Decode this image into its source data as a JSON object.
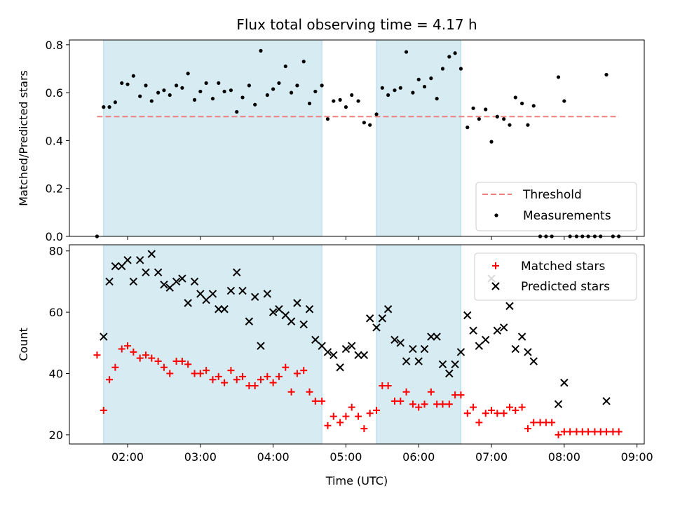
{
  "chart_data": [
    {
      "type": "scatter",
      "title": "Flux total observing time = 4.17 h",
      "ylabel": "Matched/Predicted stars",
      "ylim": [
        0,
        0.82
      ],
      "yticks": [
        0.0,
        0.2,
        0.4,
        0.6,
        0.8
      ],
      "ytick_labels": [
        "0.0",
        "0.2",
        "0.4",
        "0.6",
        "0.8"
      ],
      "xlim": [
        1.2,
        9.1
      ],
      "grid": false,
      "legend_position": "bottom-right",
      "shaded_intervals": [
        [
          1.67,
          4.67
        ],
        [
          5.42,
          6.58
        ]
      ],
      "threshold": {
        "name": "Threshold",
        "value": 0.5,
        "x_range": [
          1.58,
          8.75
        ],
        "color": "#f08080"
      },
      "series": [
        {
          "name": "Measurements",
          "marker": "dot",
          "color": "#000000",
          "x": [
            1.58,
            1.67,
            1.75,
            1.83,
            1.92,
            2.0,
            2.08,
            2.17,
            2.25,
            2.33,
            2.42,
            2.5,
            2.58,
            2.67,
            2.75,
            2.83,
            2.92,
            3.0,
            3.08,
            3.17,
            3.25,
            3.33,
            3.42,
            3.5,
            3.58,
            3.67,
            3.75,
            3.83,
            3.92,
            4.0,
            4.08,
            4.17,
            4.25,
            4.33,
            4.42,
            4.5,
            4.58,
            4.67,
            4.75,
            4.83,
            4.92,
            5.0,
            5.08,
            5.17,
            5.25,
            5.33,
            5.42,
            5.5,
            5.58,
            5.67,
            5.75,
            5.83,
            5.92,
            6.0,
            6.08,
            6.17,
            6.25,
            6.33,
            6.42,
            6.5,
            6.58,
            6.67,
            6.75,
            6.83,
            6.92,
            7.0,
            7.08,
            7.17,
            7.25,
            7.33,
            7.42,
            7.5,
            7.58,
            7.67,
            7.75,
            7.83,
            7.92,
            8.0,
            8.08,
            8.17,
            8.25,
            8.33,
            8.42,
            8.5,
            8.58,
            8.67,
            8.75
          ],
          "y": [
            0.0,
            0.54,
            0.54,
            0.56,
            0.64,
            0.635,
            0.67,
            0.585,
            0.63,
            0.565,
            0.6,
            0.61,
            0.59,
            0.63,
            0.62,
            0.68,
            0.57,
            0.605,
            0.64,
            0.575,
            0.64,
            0.605,
            0.61,
            0.52,
            0.58,
            0.63,
            0.55,
            0.775,
            0.59,
            0.615,
            0.64,
            0.71,
            0.6,
            0.63,
            0.73,
            0.555,
            0.605,
            0.63,
            0.49,
            0.565,
            0.57,
            0.54,
            0.59,
            0.565,
            0.475,
            0.465,
            0.51,
            0.62,
            0.59,
            0.61,
            0.62,
            0.77,
            0.6,
            0.655,
            0.625,
            0.66,
            0.575,
            0.7,
            0.75,
            0.765,
            0.7,
            0.455,
            0.535,
            0.49,
            0.53,
            0.395,
            0.5,
            0.49,
            0.465,
            0.58,
            0.555,
            0.465,
            0.545,
            0.0,
            0.0,
            0.0,
            0.665,
            0.565,
            0.0,
            0.0,
            0.0,
            0.0,
            0.0,
            0.0,
            0.675,
            0.0,
            0.0
          ]
        }
      ]
    },
    {
      "type": "scatter",
      "xlabel": "Time (UTC)",
      "ylabel": "Count",
      "ylim": [
        17,
        82
      ],
      "yticks": [
        20,
        40,
        60,
        80
      ],
      "ytick_labels": [
        "20",
        "40",
        "60",
        "80"
      ],
      "xlim": [
        1.2,
        9.1
      ],
      "xticks": [
        2,
        3,
        4,
        5,
        6,
        7,
        8,
        9
      ],
      "xtick_labels": [
        "02:00",
        "03:00",
        "04:00",
        "05:00",
        "06:00",
        "07:00",
        "08:00",
        "09:00"
      ],
      "grid": false,
      "legend_position": "top-right",
      "shaded_intervals": [
        [
          1.67,
          4.67
        ],
        [
          5.42,
          6.58
        ]
      ],
      "series": [
        {
          "name": "Matched stars",
          "marker": "plus",
          "color": "#ff0000",
          "x": [
            1.58,
            1.67,
            1.75,
            1.83,
            1.92,
            2.0,
            2.08,
            2.17,
            2.25,
            2.33,
            2.42,
            2.5,
            2.58,
            2.67,
            2.75,
            2.83,
            2.92,
            3.0,
            3.08,
            3.17,
            3.25,
            3.33,
            3.42,
            3.5,
            3.58,
            3.67,
            3.75,
            3.83,
            3.92,
            4.0,
            4.08,
            4.17,
            4.25,
            4.33,
            4.42,
            4.5,
            4.58,
            4.67,
            4.75,
            4.83,
            4.92,
            5.0,
            5.08,
            5.17,
            5.25,
            5.33,
            5.42,
            5.5,
            5.58,
            5.67,
            5.75,
            5.83,
            5.92,
            6.0,
            6.08,
            6.17,
            6.25,
            6.33,
            6.42,
            6.5,
            6.58,
            6.67,
            6.75,
            6.83,
            6.92,
            7.0,
            7.08,
            7.17,
            7.25,
            7.33,
            7.42,
            7.5,
            7.58,
            7.67,
            7.75,
            7.83,
            7.92,
            8.0,
            8.08,
            8.17,
            8.25,
            8.33,
            8.42,
            8.5,
            8.58,
            8.67,
            8.75
          ],
          "y": [
            46,
            28,
            38,
            42,
            48,
            49,
            47,
            45,
            46,
            45,
            44,
            42,
            40,
            44,
            44,
            43,
            40,
            40,
            41,
            38,
            39,
            37,
            41,
            38,
            39,
            36,
            36,
            38,
            39,
            37,
            39,
            42,
            34,
            40,
            41,
            34,
            31,
            31,
            23,
            26,
            24,
            26,
            29,
            26,
            22,
            27,
            28,
            36,
            36,
            31,
            31,
            34,
            30,
            29,
            30,
            34,
            30,
            30,
            30,
            33,
            33,
            27,
            29,
            24,
            27,
            28,
            27,
            27,
            29,
            28,
            29,
            22,
            24,
            24,
            24,
            24,
            20,
            21,
            21,
            21,
            21,
            21,
            21,
            21,
            21,
            21,
            21
          ]
        },
        {
          "name": "Predicted stars",
          "marker": "x",
          "color": "#000000",
          "x": [
            1.67,
            1.75,
            1.83,
            1.92,
            2.0,
            2.08,
            2.17,
            2.25,
            2.33,
            2.42,
            2.5,
            2.58,
            2.67,
            2.75,
            2.83,
            2.92,
            3.0,
            3.08,
            3.17,
            3.25,
            3.33,
            3.42,
            3.5,
            3.58,
            3.67,
            3.75,
            3.83,
            3.92,
            4.0,
            4.08,
            4.17,
            4.25,
            4.33,
            4.42,
            4.5,
            4.58,
            4.67,
            4.75,
            4.83,
            4.92,
            5.0,
            5.08,
            5.17,
            5.25,
            5.33,
            5.42,
            5.5,
            5.58,
            5.67,
            5.75,
            5.83,
            5.92,
            6.0,
            6.08,
            6.17,
            6.25,
            6.33,
            6.42,
            6.5,
            6.58,
            6.67,
            6.75,
            6.83,
            6.92,
            7.0,
            7.08,
            7.17,
            7.25,
            7.33,
            7.42,
            7.5,
            7.58,
            7.92,
            8.0,
            8.58
          ],
          "y": [
            52,
            70,
            75,
            75,
            77,
            70,
            77,
            73,
            79,
            73,
            69,
            68,
            70,
            71,
            63,
            70,
            66,
            64,
            66,
            61,
            61,
            67,
            73,
            67,
            57,
            65,
            49,
            66,
            60,
            61,
            59,
            57,
            63,
            56,
            61,
            51,
            49,
            47,
            46,
            42,
            48,
            49,
            46,
            46,
            58,
            55,
            58,
            61,
            51,
            50,
            44,
            48,
            44,
            48,
            52,
            52,
            43,
            40,
            43,
            47,
            59,
            54,
            49,
            51,
            71,
            54,
            55,
            62,
            48,
            52,
            47,
            44,
            30,
            37,
            31
          ]
        }
      ]
    }
  ]
}
